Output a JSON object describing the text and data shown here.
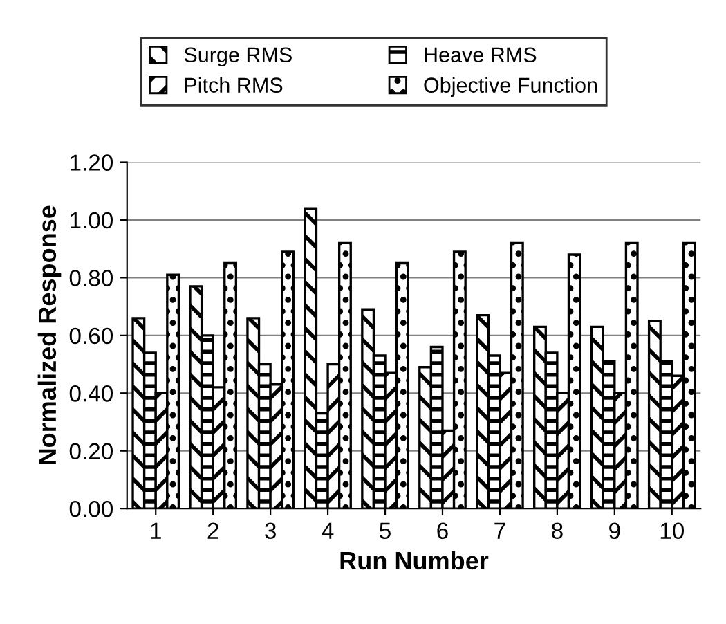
{
  "chart_data": {
    "type": "bar",
    "xlabel": "Run Number",
    "ylabel": "Normalized Response",
    "categories": [
      "1",
      "2",
      "3",
      "4",
      "5",
      "6",
      "7",
      "8",
      "9",
      "10"
    ],
    "series": [
      {
        "name": "Surge RMS",
        "color": "#000000",
        "values": [
          0.66,
          0.77,
          0.66,
          1.04,
          0.69,
          0.49,
          0.67,
          0.63,
          0.63,
          0.65
        ]
      },
      {
        "name": "Heave RMS",
        "color": "#000000",
        "values": [
          0.54,
          0.6,
          0.5,
          0.33,
          0.53,
          0.56,
          0.53,
          0.54,
          0.51,
          0.51
        ]
      },
      {
        "name": "Pitch RMS",
        "color": "#000000",
        "values": [
          0.4,
          0.42,
          0.43,
          0.5,
          0.47,
          0.27,
          0.47,
          0.4,
          0.4,
          0.46
        ]
      },
      {
        "name": "Objective Function",
        "color": "#000000",
        "values": [
          0.81,
          0.85,
          0.89,
          0.92,
          0.85,
          0.89,
          0.92,
          0.88,
          0.92,
          0.92
        ]
      }
    ],
    "ylim": [
      0,
      1.2
    ],
    "yticks": [
      {
        "value": 0,
        "label": "0.00"
      },
      {
        "value": 0.2,
        "label": "0.20"
      },
      {
        "value": 0.4,
        "label": "0.40"
      },
      {
        "value": 0.6,
        "label": "0.60"
      },
      {
        "value": 0.8,
        "label": "0.80"
      },
      {
        "value": 1.0,
        "label": "1.00"
      },
      {
        "value": 1.2,
        "label": "1.20"
      }
    ],
    "grid": "y",
    "legend": "top"
  }
}
